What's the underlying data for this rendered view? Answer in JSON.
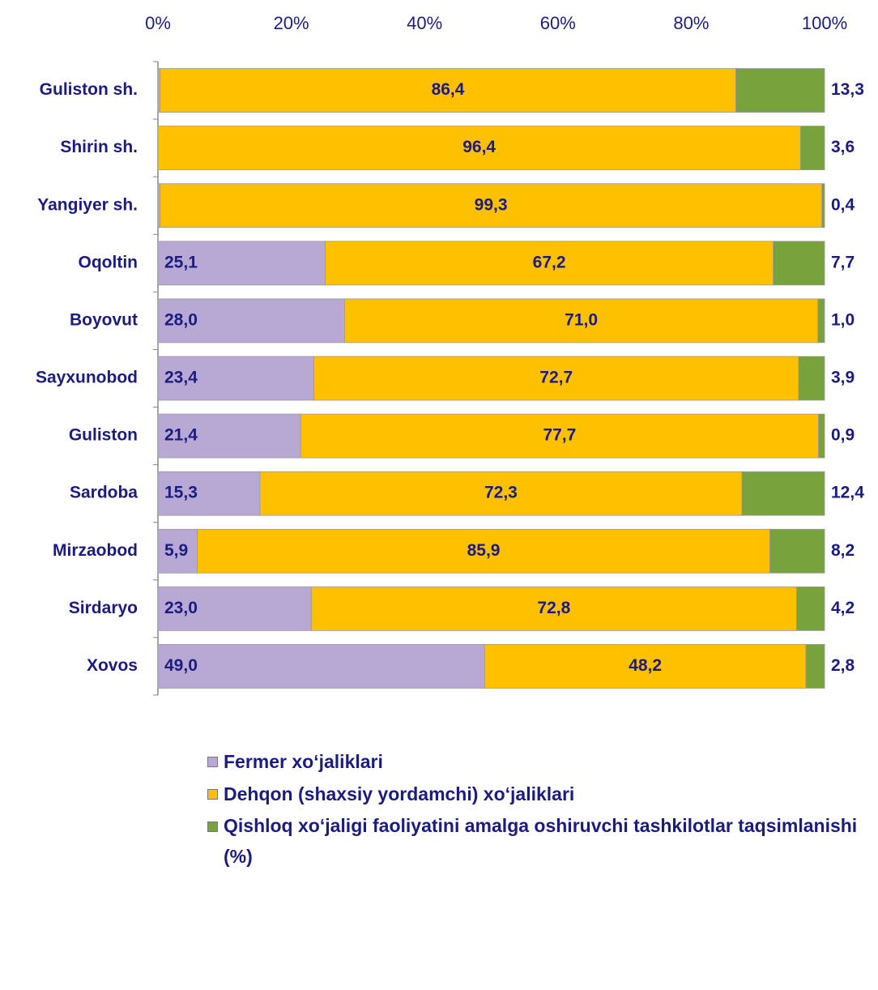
{
  "chart_data": {
    "type": "stacked_barh",
    "categories": [
      "Guliston sh.",
      "Shirin sh.",
      "Yangiyer sh.",
      "Oqoltin",
      "Boyovut",
      "Sayxunobod",
      "Guliston",
      "Sardoba",
      "Mirzaobod",
      "Sirdaryo",
      "Xovos"
    ],
    "series": [
      {
        "name": "Fermer xo‘jaliklari",
        "color": "#b7a9d4",
        "values": [
          0.3,
          0.0,
          0.3,
          25.1,
          28.0,
          23.4,
          21.4,
          15.3,
          5.9,
          23.0,
          49.0
        ],
        "value_labels": [
          "0,3",
          "0,0",
          "0,3",
          "25,1",
          "28,0",
          "23,4",
          "21,4",
          "15,3",
          "5,9",
          "23,0",
          "49,0"
        ]
      },
      {
        "name": "Dehqon (shaxsiy yordamchi) xo‘jaliklari",
        "color": "#ffc000",
        "values": [
          86.4,
          96.4,
          99.3,
          67.2,
          71.0,
          72.7,
          77.7,
          72.3,
          85.9,
          72.8,
          48.2
        ],
        "value_labels": [
          "86,4",
          "96,4",
          "99,3",
          "67,2",
          "71,0",
          "72,7",
          "77,7",
          "72,3",
          "85,9",
          "72,8",
          "48,2"
        ]
      },
      {
        "name": "Qishloq xo‘jaligi faoliyatini amalga oshiruvchi tashkilotlar taqsimlanishi (%)",
        "color": "#77a23c",
        "values": [
          13.3,
          3.6,
          0.4,
          7.7,
          1.0,
          3.9,
          0.9,
          12.4,
          8.2,
          4.2,
          2.8
        ],
        "value_labels": [
          "13,3",
          "3,6",
          "0,4",
          "7,7",
          "1,0",
          "3,9",
          "0,9",
          "12,4",
          "8,2",
          "4,2",
          "2,8"
        ]
      }
    ],
    "xlim": [
      0,
      100
    ],
    "xticks": [
      {
        "value": 0,
        "label": "0%"
      },
      {
        "value": 20,
        "label": "20%"
      },
      {
        "value": 40,
        "label": "40%"
      },
      {
        "value": 60,
        "label": "60%"
      },
      {
        "value": 80,
        "label": "80%"
      },
      {
        "value": 100,
        "label": "100%"
      }
    ]
  }
}
